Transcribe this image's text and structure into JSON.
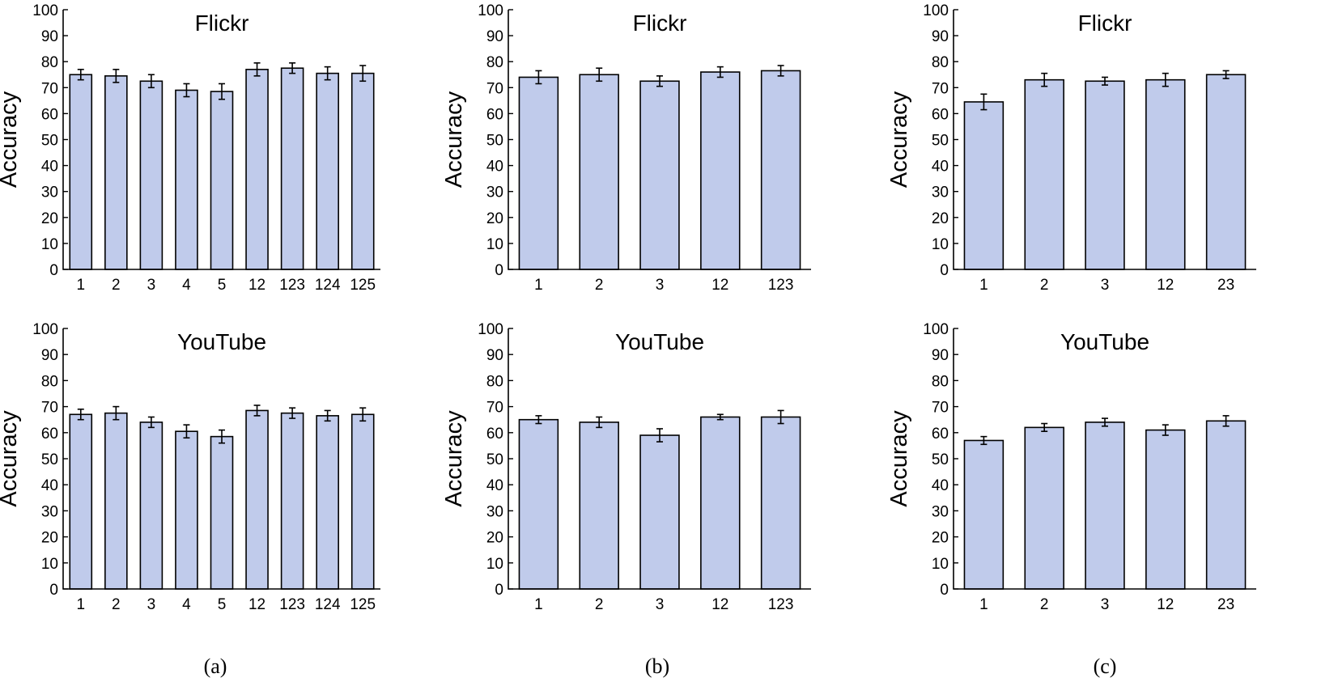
{
  "colors": {
    "bar_fill": "#c0cbeb",
    "bar_stroke": "#000000"
  },
  "captions": [
    "(a)",
    "(b)",
    "(c)"
  ],
  "chart_data": [
    {
      "type": "bar",
      "panel": "a",
      "title": "Flickr",
      "ylabel": "Accuracy",
      "xlabel": "",
      "ylim": [
        0,
        100
      ],
      "yticks": [
        0,
        10,
        20,
        30,
        40,
        50,
        60,
        70,
        80,
        90,
        100
      ],
      "grid": false,
      "categories": [
        "1",
        "2",
        "3",
        "4",
        "5",
        "12",
        "123",
        "124",
        "125"
      ],
      "values": [
        75,
        74.5,
        72.5,
        69,
        68.5,
        77,
        77.5,
        75.5,
        75.5
      ],
      "errors": [
        2,
        2.5,
        2.5,
        2.5,
        3,
        2.5,
        2,
        2.5,
        3
      ]
    },
    {
      "type": "bar",
      "panel": "b",
      "title": "Flickr",
      "ylabel": "Accuracy",
      "xlabel": "",
      "ylim": [
        0,
        100
      ],
      "yticks": [
        0,
        10,
        20,
        30,
        40,
        50,
        60,
        70,
        80,
        90,
        100
      ],
      "grid": false,
      "categories": [
        "1",
        "2",
        "3",
        "12",
        "123"
      ],
      "values": [
        74,
        75,
        72.5,
        76,
        76.5
      ],
      "errors": [
        2.5,
        2.5,
        2,
        2,
        2
      ]
    },
    {
      "type": "bar",
      "panel": "c",
      "title": "Flickr",
      "ylabel": "Accuracy",
      "xlabel": "",
      "ylim": [
        0,
        100
      ],
      "yticks": [
        0,
        10,
        20,
        30,
        40,
        50,
        60,
        70,
        80,
        90,
        100
      ],
      "grid": false,
      "categories": [
        "1",
        "2",
        "3",
        "12",
        "23"
      ],
      "values": [
        64.5,
        73,
        72.5,
        73,
        75
      ],
      "errors": [
        3,
        2.5,
        1.5,
        2.5,
        1.5
      ]
    },
    {
      "type": "bar",
      "panel": "a",
      "title": "YouTube",
      "ylabel": "Accuracy",
      "xlabel": "",
      "ylim": [
        0,
        100
      ],
      "yticks": [
        0,
        10,
        20,
        30,
        40,
        50,
        60,
        70,
        80,
        90,
        100
      ],
      "grid": false,
      "categories": [
        "1",
        "2",
        "3",
        "4",
        "5",
        "12",
        "123",
        "124",
        "125"
      ],
      "values": [
        67,
        67.5,
        64,
        60.5,
        58.5,
        68.5,
        67.5,
        66.5,
        67
      ],
      "errors": [
        2,
        2.5,
        2,
        2.5,
        2.5,
        2,
        2,
        2,
        2.5
      ]
    },
    {
      "type": "bar",
      "panel": "b",
      "title": "YouTube",
      "ylabel": "Accuracy",
      "xlabel": "",
      "ylim": [
        0,
        100
      ],
      "yticks": [
        0,
        10,
        20,
        30,
        40,
        50,
        60,
        70,
        80,
        90,
        100
      ],
      "grid": false,
      "categories": [
        "1",
        "2",
        "3",
        "12",
        "123"
      ],
      "values": [
        65,
        64,
        59,
        66,
        66
      ],
      "errors": [
        1.5,
        2,
        2.5,
        1,
        2.5
      ]
    },
    {
      "type": "bar",
      "panel": "c",
      "title": "YouTube",
      "ylabel": "Accuracy",
      "xlabel": "",
      "ylim": [
        0,
        100
      ],
      "yticks": [
        0,
        10,
        20,
        30,
        40,
        50,
        60,
        70,
        80,
        90,
        100
      ],
      "grid": false,
      "categories": [
        "1",
        "2",
        "3",
        "12",
        "23"
      ],
      "values": [
        57,
        62,
        64,
        61,
        64.5
      ],
      "errors": [
        1.5,
        1.5,
        1.5,
        2,
        2
      ]
    }
  ]
}
